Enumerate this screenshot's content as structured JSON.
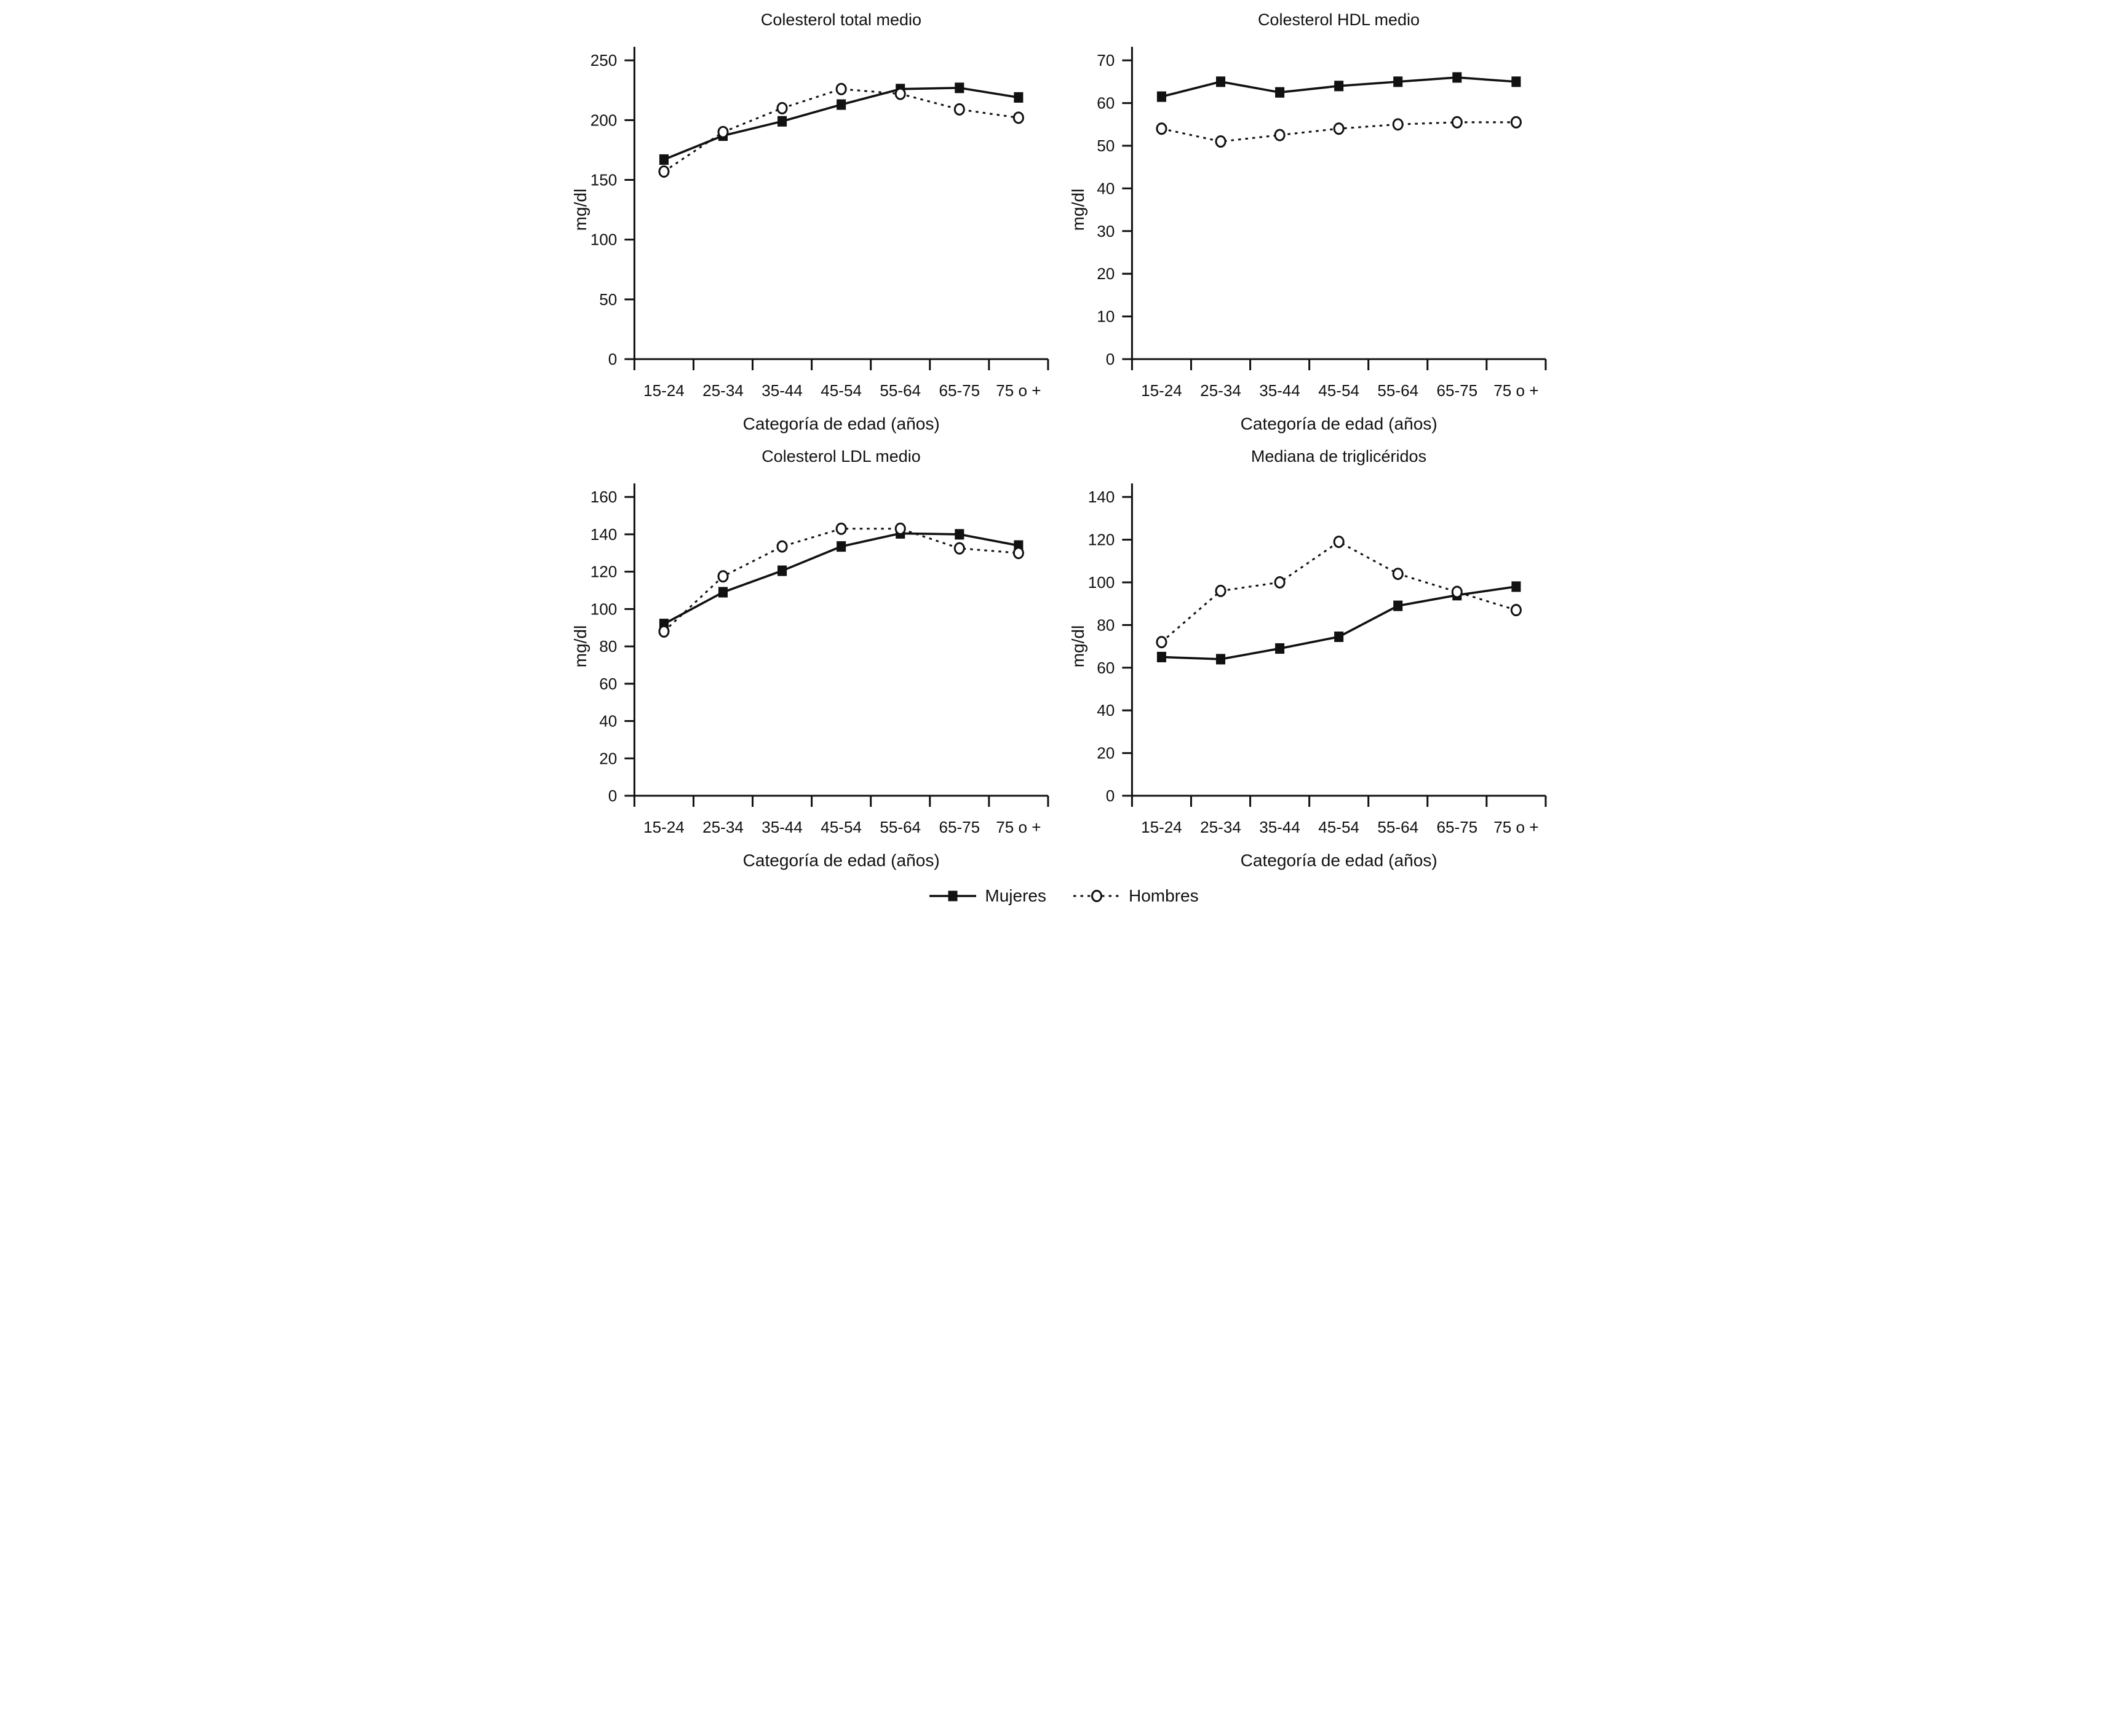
{
  "page": {
    "background": "#ffffff",
    "ink": "#111111"
  },
  "legend": {
    "items": [
      {
        "label": "Mujeres",
        "marker": "filled-square",
        "line": "solid"
      },
      {
        "label": "Hombres",
        "marker": "open-circle",
        "line": "dotted"
      }
    ]
  },
  "chart_data": [
    {
      "type": "line",
      "title": "Colesterol total medio",
      "xlabel": "Categoría de edad (años)",
      "ylabel": "mg/dl",
      "ylim": [
        0,
        250
      ],
      "yticks": [
        0,
        50,
        100,
        150,
        200,
        250
      ],
      "grid": false,
      "categories": [
        "15-24",
        "25-34",
        "35-44",
        "45-54",
        "55-64",
        "65-75",
        "75 o +"
      ],
      "series": [
        {
          "name": "Mujeres",
          "line": "solid",
          "marker": "filled-square",
          "values": [
            167,
            187,
            199,
            213,
            226,
            227,
            219
          ]
        },
        {
          "name": "Hombres",
          "line": "dotted",
          "marker": "open-circle",
          "values": [
            157,
            190,
            210,
            226,
            222,
            209,
            202
          ]
        }
      ]
    },
    {
      "type": "line",
      "title": "Colesterol HDL medio",
      "xlabel": "Categoría de edad (años)",
      "ylabel": "mg/dl",
      "ylim": [
        0,
        70
      ],
      "yticks": [
        0,
        10,
        20,
        30,
        40,
        50,
        60,
        70
      ],
      "grid": false,
      "categories": [
        "15-24",
        "25-34",
        "35-44",
        "45-54",
        "55-64",
        "65-75",
        "75 o +"
      ],
      "series": [
        {
          "name": "Mujeres",
          "line": "solid",
          "marker": "filled-square",
          "values": [
            61.5,
            65,
            62.5,
            64,
            65,
            66,
            65
          ]
        },
        {
          "name": "Hombres",
          "line": "dotted",
          "marker": "open-circle",
          "values": [
            54,
            51,
            52.5,
            54,
            55,
            55.5,
            55.5
          ]
        }
      ]
    },
    {
      "type": "line",
      "title": "Colesterol LDL medio",
      "xlabel": "Categoría de edad (años)",
      "ylabel": "mg/dl",
      "ylim": [
        0,
        160
      ],
      "yticks": [
        0,
        20,
        40,
        60,
        80,
        100,
        120,
        140,
        160
      ],
      "grid": false,
      "categories": [
        "15-24",
        "25-34",
        "35-44",
        "45-54",
        "55-64",
        "65-75",
        "75 o +"
      ],
      "series": [
        {
          "name": "Mujeres",
          "line": "solid",
          "marker": "filled-square",
          "values": [
            92,
            109,
            120.5,
            133.5,
            140.5,
            140,
            134
          ]
        },
        {
          "name": "Hombres",
          "line": "dotted",
          "marker": "open-circle",
          "values": [
            88,
            117.5,
            133.5,
            143,
            143,
            132.5,
            130
          ]
        }
      ]
    },
    {
      "type": "line",
      "title": "Mediana de triglicéridos",
      "xlabel": "Categoría de edad (años)",
      "ylabel": "mg/dl",
      "ylim": [
        0,
        140
      ],
      "yticks": [
        0,
        20,
        40,
        60,
        80,
        100,
        120,
        140
      ],
      "grid": false,
      "categories": [
        "15-24",
        "25-34",
        "35-44",
        "45-54",
        "55-64",
        "65-75",
        "75 o +"
      ],
      "series": [
        {
          "name": "Mujeres",
          "line": "solid",
          "marker": "filled-square",
          "values": [
            65,
            64,
            69,
            74.5,
            89,
            94,
            98
          ]
        },
        {
          "name": "Hombres",
          "line": "dotted",
          "marker": "open-circle",
          "values": [
            72,
            96,
            100,
            119,
            104,
            95.5,
            87
          ]
        }
      ]
    }
  ]
}
